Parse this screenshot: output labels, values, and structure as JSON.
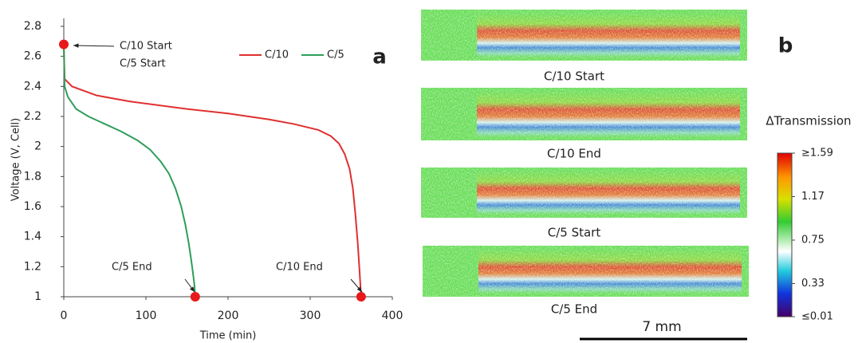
{
  "chart_data": {
    "type": "line",
    "xlabel": "Time (min)",
    "ylabel": "Voltage (V, Cell)",
    "xlim": [
      0,
      400
    ],
    "xticks": [
      0,
      100,
      200,
      300,
      400
    ],
    "ylim": [
      1,
      2.8
    ],
    "yticks": [
      1,
      1.2,
      1.4,
      1.6,
      1.8,
      2,
      2.2,
      2.4,
      2.6,
      2.8
    ],
    "series": [
      {
        "name": "C/10",
        "color": "#e03030",
        "x": [
          0,
          1,
          10,
          40,
          80,
          150,
          200,
          250,
          280,
          310,
          325,
          335,
          342,
          348,
          352,
          355,
          358,
          360,
          362
        ],
        "values": [
          2.68,
          2.45,
          2.4,
          2.34,
          2.3,
          2.25,
          2.22,
          2.18,
          2.15,
          2.11,
          2.07,
          2.02,
          1.95,
          1.85,
          1.72,
          1.55,
          1.35,
          1.18,
          1.0
        ]
      },
      {
        "name": "C/5",
        "color": "#2e9e5a",
        "x": [
          0,
          1,
          5,
          15,
          30,
          50,
          70,
          90,
          105,
          118,
          128,
          136,
          143,
          148,
          152,
          155,
          157,
          159,
          160
        ],
        "values": [
          2.68,
          2.4,
          2.33,
          2.25,
          2.2,
          2.15,
          2.1,
          2.04,
          1.98,
          1.9,
          1.82,
          1.72,
          1.6,
          1.48,
          1.36,
          1.25,
          1.17,
          1.08,
          1.0
        ]
      }
    ],
    "points": {
      "color": "#e8191a",
      "x": [
        0,
        160,
        362
      ],
      "values": [
        2.68,
        1.0,
        1.0
      ]
    },
    "annotations": [
      "C/10 Start",
      "C/5 Start",
      "C/5 End",
      "C/10 End"
    ],
    "panel_label": "a"
  },
  "panel_b": {
    "label": "b",
    "captions": [
      "C/10 Start",
      "C/10 End",
      "C/5 Start",
      "C/5 End"
    ],
    "scale_bar": "7 mm",
    "colorbar": {
      "title": "ΔTransmission",
      "lim": [
        0.01,
        1.59
      ],
      "ticks": [
        {
          "value": 1.59,
          "label": "≥1.59"
        },
        1.17,
        0.75,
        0.33,
        {
          "value": 0.01,
          "label": "≤0.01"
        }
      ]
    }
  }
}
